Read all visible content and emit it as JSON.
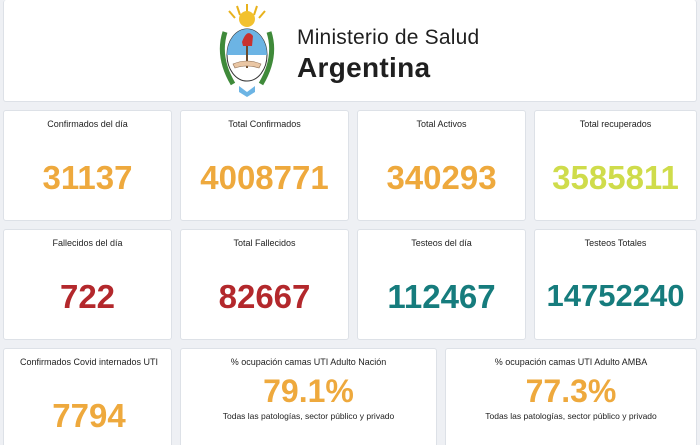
{
  "header": {
    "ministry_line1": "Ministerio de Salud",
    "ministry_line2": "Argentina",
    "logo_icon": "argentina-coat-of-arms-icon"
  },
  "stats": {
    "confirmados_dia": {
      "label": "Confirmados del día",
      "value": "31137"
    },
    "total_confirmados": {
      "label": "Total Confirmados",
      "value": "4008771"
    },
    "total_activos": {
      "label": "Total Activos",
      "value": "340293"
    },
    "total_recuperados": {
      "label": "Total recuperados",
      "value": "3585811"
    },
    "fallecidos_dia": {
      "label": "Fallecidos del día",
      "value": "722"
    },
    "total_fallecidos": {
      "label": "Total Fallecidos",
      "value": "82667"
    },
    "testeos_dia": {
      "label": "Testeos del día",
      "value": "112467"
    },
    "testeos_totales": {
      "label": "Testeos Totales",
      "value": "14752240"
    },
    "internados_uti": {
      "label": "Confirmados Covid internados UTI",
      "value": "7794"
    },
    "ocupacion_nacion": {
      "label": "% ocupación camas UTI Adulto Nación",
      "value": "79.1%",
      "note": "Todas las patologías, sector público y privado"
    },
    "ocupacion_amba": {
      "label": "% ocupación camas UTI Adulto AMBA",
      "value": "77.3%",
      "note": "Todas las patologías, sector público y privado"
    }
  },
  "colors": {
    "orange": "#eea93d",
    "yellow": "#cfdc4b",
    "red": "#b3282c",
    "teal": "#167c7d"
  }
}
